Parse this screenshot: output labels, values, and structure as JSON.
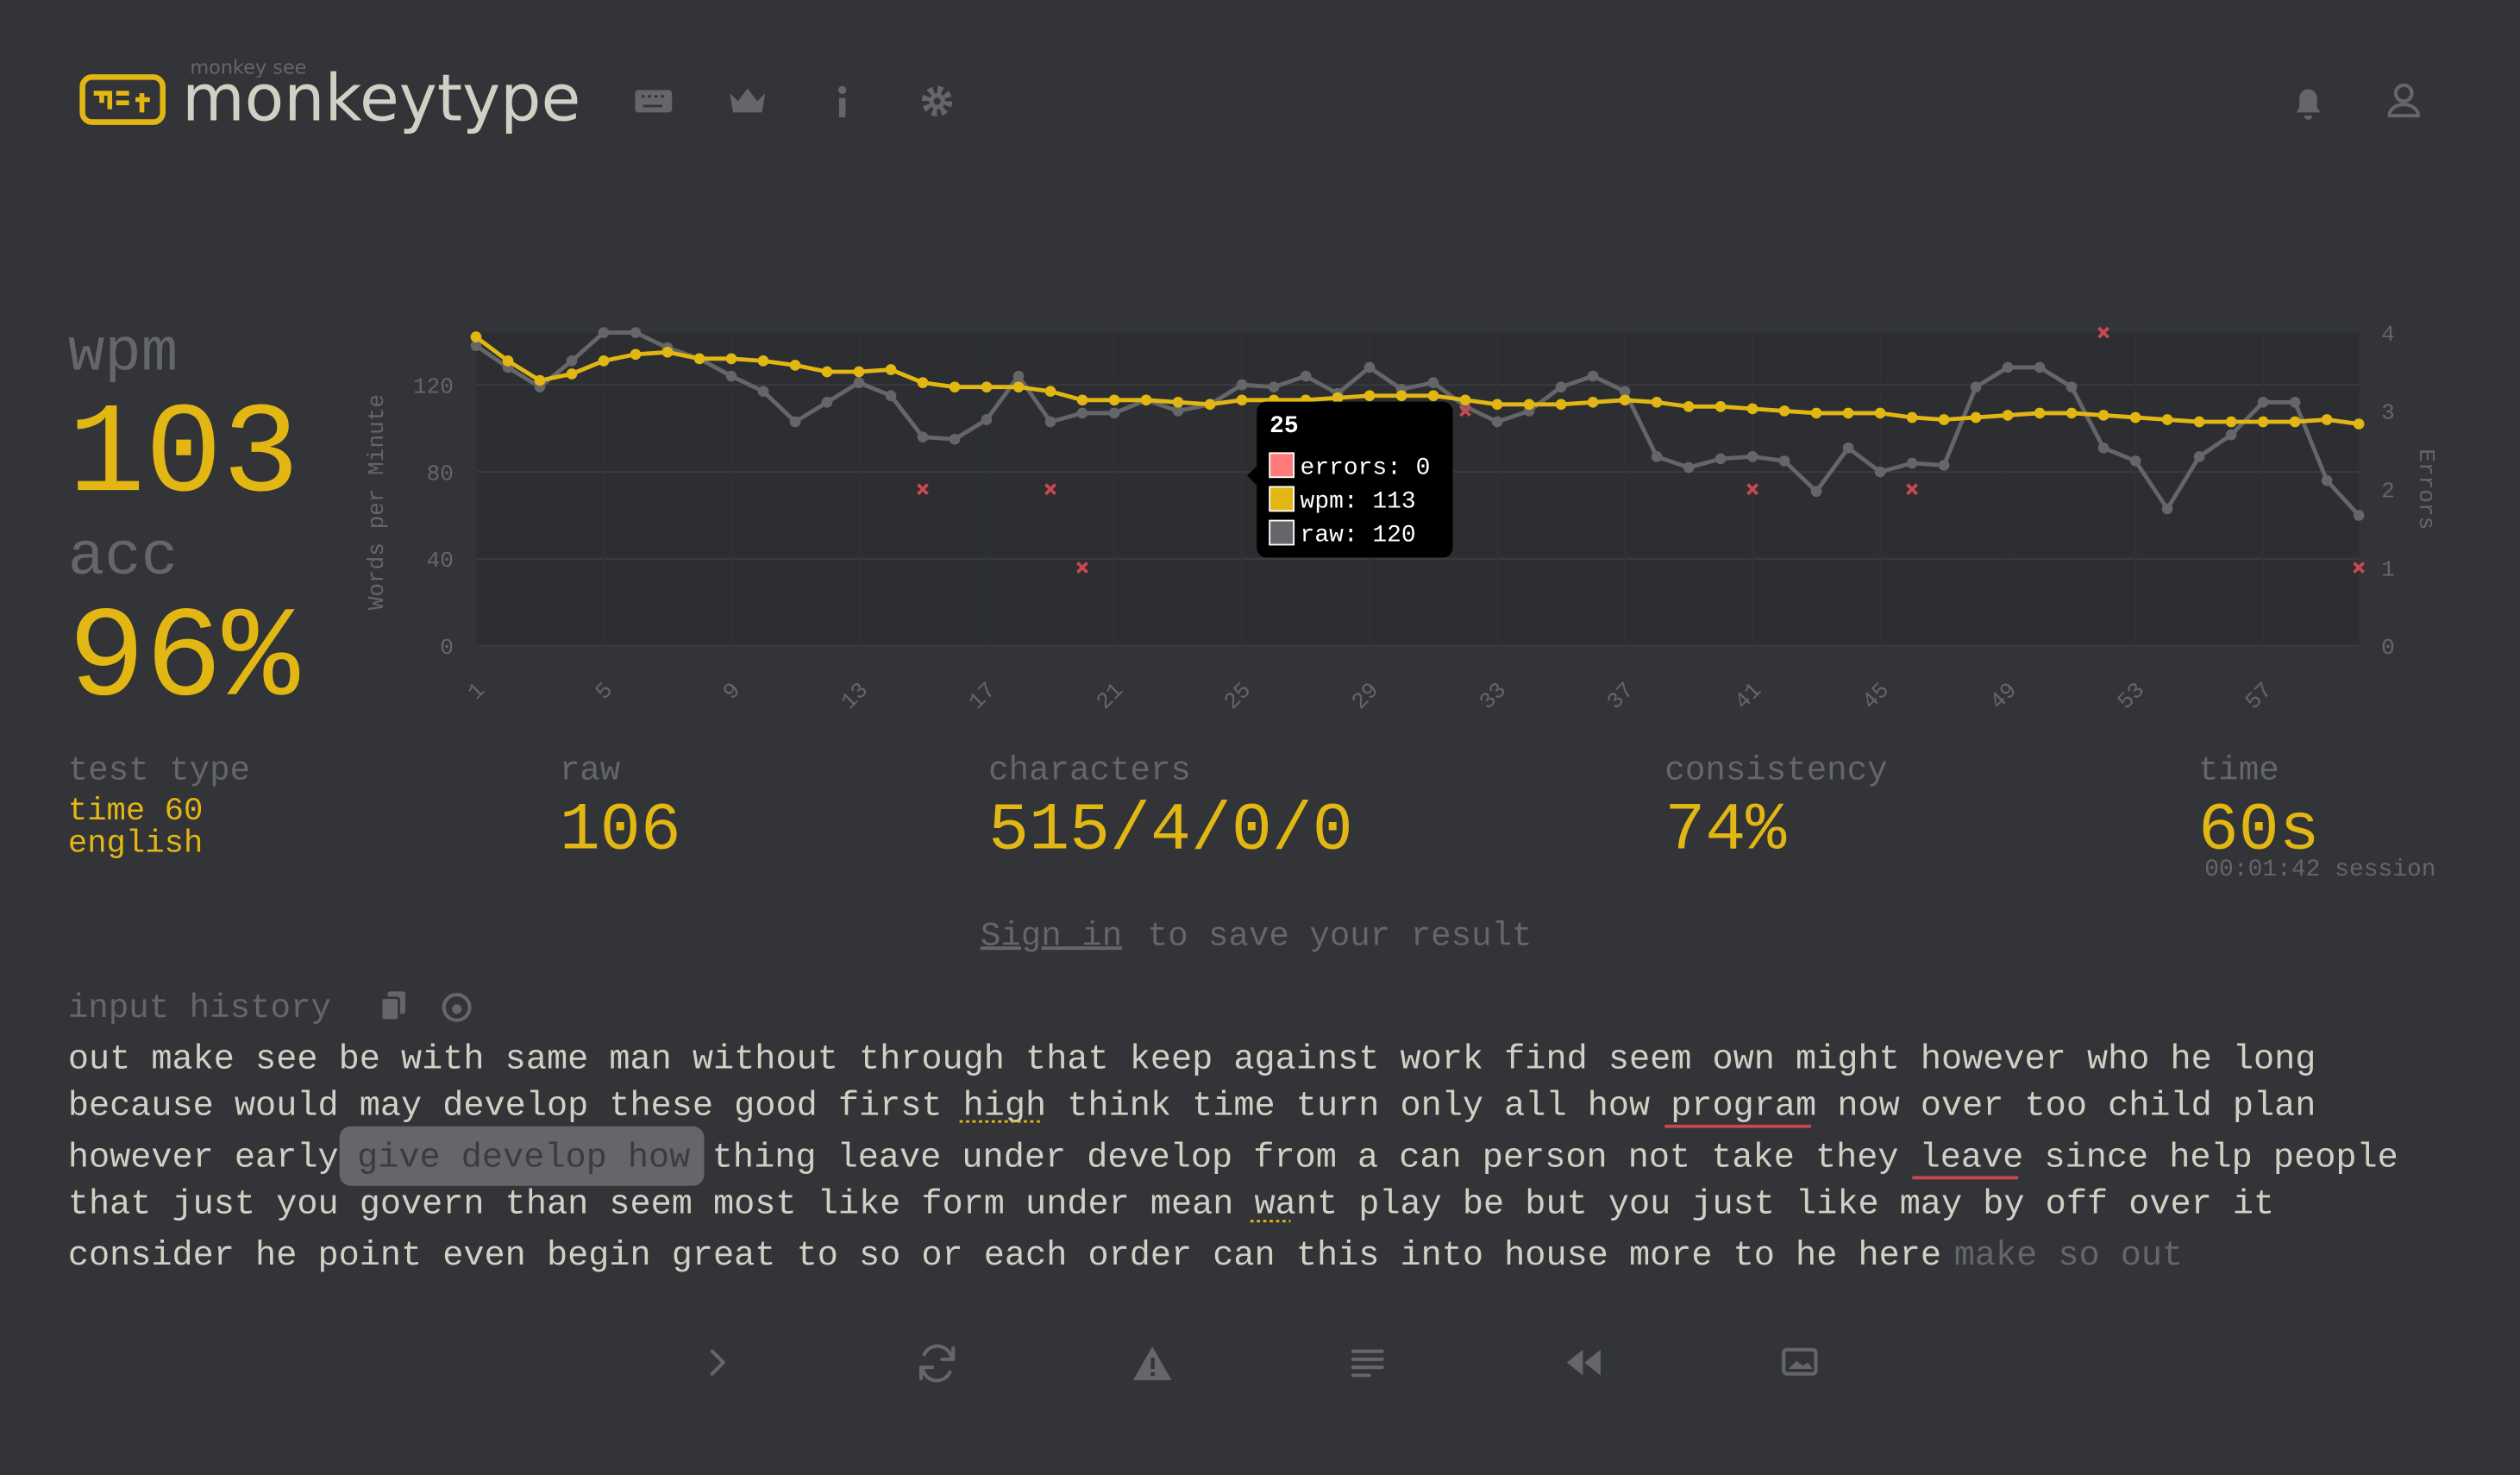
{
  "header": {
    "logo_small": "monkey see",
    "logo": "monkeytype"
  },
  "stats": {
    "wpm_label": "wpm",
    "wpm": "103",
    "acc_label": "acc",
    "acc": "96%",
    "test_type_label": "test type",
    "test_type_mode": "time 60",
    "test_type_language": "english",
    "raw_label": "raw",
    "raw": "106",
    "characters_label": "characters",
    "characters": "515/4/0/0",
    "consistency_label": "consistency",
    "consistency": "74%",
    "time_label": "time",
    "time": "60s",
    "session": "00:01:42 session"
  },
  "sign_in": {
    "link": "Sign in",
    "text": "to save your result"
  },
  "history": {
    "label": "input history",
    "lines": [
      [
        "out make see be with same man without through that keep against work find seem own might however who he long"
      ],
      [
        "because would may develop these good first high think time turn only all how program now over too child plan"
      ],
      [
        "however early",
        "give develop how",
        "thing leave under develop from a can person not take they leave since help people"
      ],
      [
        "that just you govern than seem most like form under mean want play be but you just like may by off over it"
      ],
      [
        "consider he point even begin great to so or each order can this into house more to he here",
        "make so out"
      ]
    ]
  },
  "chart_data": {
    "type": "line",
    "ylabel": "Words per Minute",
    "y2label": "Errors",
    "x": [
      1,
      2,
      3,
      4,
      5,
      6,
      7,
      8,
      9,
      10,
      11,
      12,
      13,
      14,
      15,
      16,
      17,
      18,
      19,
      20,
      21,
      22,
      23,
      24,
      25,
      26,
      27,
      28,
      29,
      30,
      31,
      32,
      33,
      34,
      35,
      36,
      37,
      38,
      39,
      40,
      41,
      42,
      43,
      44,
      45,
      46,
      47,
      48,
      49,
      50,
      51,
      52,
      53,
      54,
      55,
      56,
      57,
      58,
      59,
      60
    ],
    "xlim": [
      1,
      60
    ],
    "xticks": [
      1,
      5,
      9,
      13,
      17,
      21,
      25,
      29,
      33,
      37,
      41,
      45,
      49,
      53,
      57
    ],
    "ylim": [
      0,
      144
    ],
    "yticks": [
      0,
      40,
      80,
      120
    ],
    "y2lim": [
      0,
      4
    ],
    "y2ticks": [
      0,
      1,
      2,
      3,
      4
    ],
    "grid": true,
    "series": [
      {
        "color": "#e2b714",
        "values": [
          142,
          131,
          122,
          125,
          131,
          134,
          135,
          132,
          132,
          131,
          129,
          126,
          126,
          127,
          121,
          119,
          119,
          119,
          117,
          113,
          113,
          113,
          112,
          111,
          113,
          113,
          113,
          114,
          115,
          115,
          115,
          113,
          111,
          111,
          111,
          112,
          113,
          112,
          110,
          110,
          109,
          108,
          107,
          107,
          107,
          105,
          104,
          105,
          106,
          107,
          107,
          106,
          105,
          104,
          103,
          103,
          103,
          103,
          104,
          102
        ]
      },
      {
        "color": "#646669",
        "values": [
          138,
          128,
          119,
          131,
          144,
          144,
          137,
          132,
          124,
          117,
          103,
          112,
          121,
          115,
          96,
          95,
          104,
          124,
          103,
          107,
          107,
          113,
          108,
          111,
          120,
          119,
          124,
          116,
          128,
          118,
          121,
          110,
          103,
          108,
          119,
          124,
          117,
          87,
          82,
          86,
          87,
          85,
          71,
          91,
          80,
          84,
          83,
          119,
          128,
          128,
          119,
          91,
          85,
          63,
          87,
          97,
          112,
          112,
          76,
          60
        ]
      },
      {
        "color": "#ca4754",
        "axis": "y2",
        "values": [
          null,
          null,
          null,
          null,
          null,
          null,
          null,
          null,
          null,
          null,
          null,
          null,
          null,
          null,
          2,
          null,
          null,
          null,
          2,
          1,
          null,
          null,
          null,
          null,
          null,
          null,
          null,
          null,
          null,
          null,
          null,
          3,
          null,
          null,
          null,
          null,
          null,
          null,
          null,
          null,
          2,
          null,
          null,
          null,
          null,
          2,
          null,
          null,
          null,
          null,
          null,
          4,
          null,
          null,
          null,
          null,
          null,
          null,
          null,
          1
        ]
      }
    ],
    "tooltip": {
      "title": "25",
      "items": [
        "errors: 0",
        "wpm: 113",
        "raw: 120"
      ],
      "colors": [
        "#ff7b7b",
        "#e2b714",
        "#646669"
      ]
    }
  }
}
